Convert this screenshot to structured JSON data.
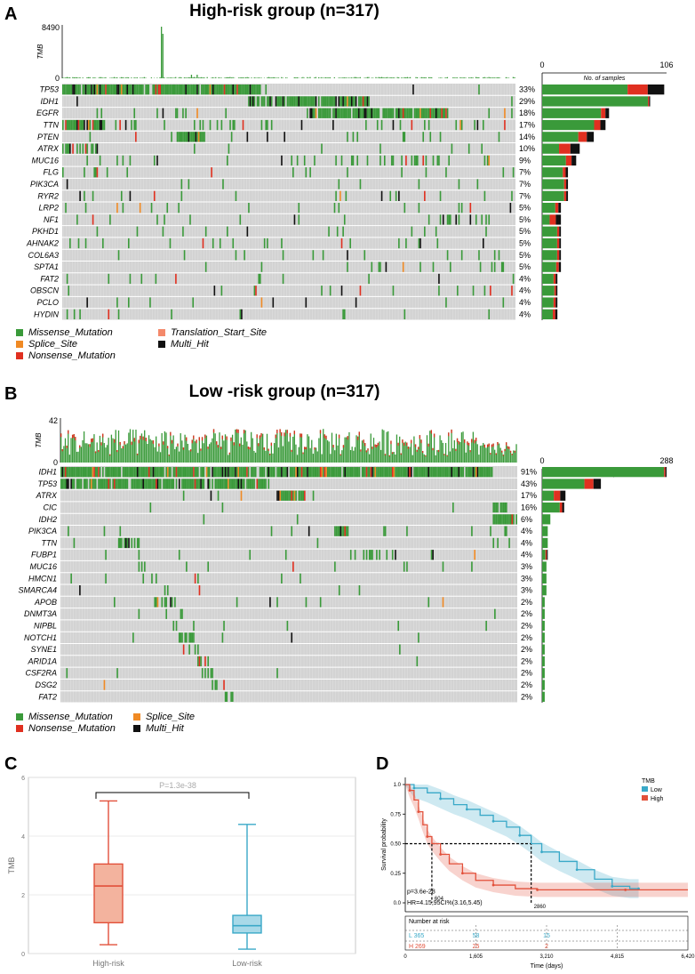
{
  "panels": {
    "A": "A",
    "B": "B",
    "C": "C",
    "D": "D"
  },
  "colors": {
    "missense": "#3a9a3a",
    "splice": "#f08a24",
    "nonsense": "#e03020",
    "translation": "#f4896b",
    "multi": "#111111",
    "wild": "#d3d3d3",
    "high": "#e2503a",
    "low": "#3aa9c8"
  },
  "panelA": {
    "title": "High-risk group (n=317)",
    "tmb_label": "TMB",
    "tmb_max": "8490",
    "tmb_min": "0",
    "nsamples_label": "No. of samples",
    "axis_min": "0",
    "axis_max": "106",
    "genes": [
      "TP53",
      "IDH1",
      "EGFR",
      "TTN",
      "PTEN",
      "ATRX",
      "MUC16",
      "FLG",
      "PIK3CA",
      "RYR2",
      "LRP2",
      "NF1",
      "PKHD1",
      "AHNAK2",
      "COL6A3",
      "SPTA1",
      "FAT2",
      "OBSCN",
      "PCLO",
      "HYDIN"
    ],
    "percents": [
      "33%",
      "29%",
      "18%",
      "17%",
      "14%",
      "10%",
      "9%",
      "7%",
      "7%",
      "7%",
      "5%",
      "5%",
      "5%",
      "5%",
      "5%",
      "5%",
      "4%",
      "4%",
      "4%",
      "4%"
    ],
    "legend": {
      "missense": "Missense_Mutation",
      "splice": "Splice_Site",
      "nonsense": "Nonsense_Mutation",
      "translation": "Translation_Start_Site",
      "multi": "Multi_Hit"
    }
  },
  "panelB": {
    "title": "Low -risk group (n=317)",
    "tmb_label": "TMB",
    "tmb_max": "42",
    "tmb_min": "0",
    "nsamples_label": "No. of samples",
    "axis_min": "0",
    "axis_max": "288",
    "genes": [
      "IDH1",
      "TP53",
      "ATRX",
      "CIC",
      "IDH2",
      "PIK3CA",
      "TTN",
      "FUBP1",
      "MUC16",
      "HMCN1",
      "SMARCA4",
      "APOB",
      "DNMT3A",
      "NIPBL",
      "NOTCH1",
      "SYNE1",
      "ARID1A",
      "CSF2RA",
      "DSG2",
      "FAT2"
    ],
    "percents": [
      "91%",
      "43%",
      "17%",
      "16%",
      "6%",
      "4%",
      "4%",
      "4%",
      "3%",
      "3%",
      "3%",
      "2%",
      "2%",
      "2%",
      "2%",
      "2%",
      "2%",
      "2%",
      "2%",
      "2%"
    ],
    "legend": {
      "missense": "Missense_Mutation",
      "splice": "Splice_Site",
      "nonsense": "Nonsense_Mutation",
      "multi": "Multi_Hit"
    }
  },
  "chart_data": [
    {
      "type": "bar",
      "title": "High-risk group (n=317)",
      "xlabel": "",
      "ylabel": "No. of samples",
      "categories": [
        "TP53",
        "IDH1",
        "EGFR",
        "TTN",
        "PTEN",
        "ATRX",
        "MUC16",
        "FLG",
        "PIK3CA",
        "RYR2",
        "LRP2",
        "NF1",
        "PKHD1",
        "AHNAK2",
        "COL6A3",
        "SPTA1",
        "FAT2",
        "OBSCN",
        "PCLO",
        "HYDIN"
      ],
      "values": [
        104,
        92,
        57,
        54,
        44,
        32,
        29,
        22,
        22,
        22,
        16,
        16,
        16,
        16,
        16,
        16,
        13,
        13,
        13,
        13
      ],
      "xlim": [
        0,
        106
      ]
    },
    {
      "type": "bar",
      "title": "Low -risk group (n=317)",
      "xlabel": "",
      "ylabel": "No. of samples",
      "categories": [
        "IDH1",
        "TP53",
        "ATRX",
        "CIC",
        "IDH2",
        "PIK3CA",
        "TTN",
        "FUBP1",
        "MUC16",
        "HMCN1",
        "SMARCA4",
        "APOB",
        "DNMT3A",
        "NIPBL",
        "NOTCH1",
        "SYNE1",
        "ARID1A",
        "CSF2RA",
        "DSG2",
        "FAT2"
      ],
      "values": [
        288,
        136,
        54,
        51,
        19,
        13,
        13,
        13,
        10,
        10,
        10,
        6,
        6,
        6,
        6,
        6,
        6,
        6,
        6,
        6
      ],
      "xlim": [
        0,
        288
      ]
    },
    {
      "type": "box",
      "title": "P=1.3e-38",
      "ylabel": "TMB",
      "categories": [
        "High-risk",
        "Low-risk"
      ],
      "ylim": [
        0,
        6
      ],
      "yticks": [
        "0",
        "2",
        "4",
        "6"
      ],
      "boxes": [
        {
          "name": "High-risk",
          "min": 0.3,
          "q1": 1.05,
          "median": 2.3,
          "q3": 3.05,
          "max": 5.2
        },
        {
          "name": "Low-risk",
          "min": 0.15,
          "q1": 0.7,
          "median": 0.95,
          "q3": 1.3,
          "max": 4.4
        }
      ]
    },
    {
      "type": "line",
      "title": "",
      "xlabel": "Time (days)",
      "ylabel": "Survival probability",
      "legend_title": "TMB",
      "xlim": [
        0,
        6420
      ],
      "ylim": [
        0,
        1
      ],
      "xticks": [
        "0",
        "1,605",
        "3,210",
        "4,815",
        "6,420"
      ],
      "yticks": [
        "0.0",
        "0.25",
        "0.50",
        "0.75",
        "1.0"
      ],
      "pvalue": "p=3.6e-28",
      "hr": "HR=4.15,95CI%(3.16,5.45)",
      "median_high": "604",
      "median_low": "2860",
      "risk_title": "Number at risk",
      "risk_low": [
        "L 365",
        "58",
        "15"
      ],
      "risk_high": [
        "H 269",
        "25",
        "2"
      ],
      "series": [
        {
          "name": "Low",
          "x": [
            0,
            200,
            500,
            800,
            1100,
            1400,
            1700,
            2000,
            2300,
            2600,
            2860,
            3100,
            3500,
            3900,
            4300,
            4700,
            5100,
            5300
          ],
          "y": [
            1.0,
            0.97,
            0.93,
            0.88,
            0.83,
            0.79,
            0.74,
            0.69,
            0.64,
            0.57,
            0.5,
            0.43,
            0.35,
            0.28,
            0.2,
            0.14,
            0.12,
            0.12
          ]
        },
        {
          "name": "High",
          "x": [
            0,
            100,
            200,
            300,
            400,
            500,
            604,
            800,
            1000,
            1300,
            1600,
            2000,
            2500,
            3000,
            4000,
            5000,
            6420
          ],
          "y": [
            1.0,
            0.95,
            0.87,
            0.77,
            0.66,
            0.56,
            0.5,
            0.41,
            0.33,
            0.25,
            0.19,
            0.15,
            0.12,
            0.11,
            0.11,
            0.11,
            0.11
          ]
        }
      ]
    }
  ]
}
